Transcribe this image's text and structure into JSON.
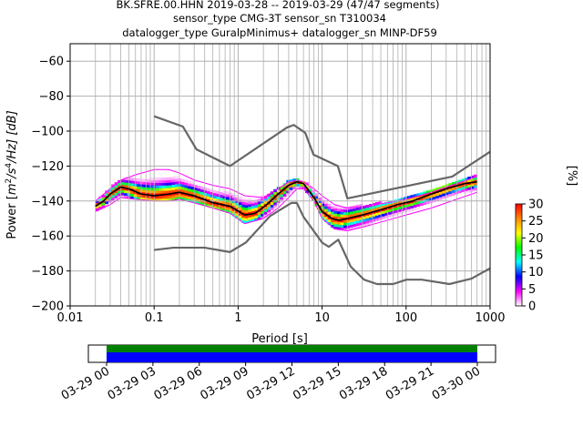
{
  "chart_data": {
    "type": "heatmap",
    "title_lines": [
      "BK.SFRE.00.HHN   2019-03-28 -- 2019-03-29  (47/47 segments)",
      "sensor_type CMG-3T sensor_sn T310034",
      "datalogger_type GuralpMinimus+ datalogger_sn MINP-DF59"
    ],
    "xlabel": "Period [s]",
    "ylabel": "Power [m²/s⁴/Hz] [dB]",
    "ylabel_parts": {
      "base": "Power [",
      "m": "m",
      "exp2": "2",
      "slash": "/s",
      "exp4": "4",
      "hz": "/Hz] [dB]"
    },
    "xscale": "log",
    "xlim": [
      0.01,
      1000
    ],
    "ylim": [
      -200,
      -50
    ],
    "xticks": [
      0.01,
      0.1,
      1,
      10,
      100,
      1000
    ],
    "xtick_labels": [
      "0.01",
      "0.1",
      "1",
      "10",
      "100",
      "1000"
    ],
    "yticks": [
      -60,
      -80,
      -100,
      -120,
      -140,
      -160,
      -180,
      -200
    ],
    "ytick_labels": [
      "−60",
      "−80",
      "−100",
      "−120",
      "−140",
      "−160",
      "−180",
      "−200"
    ],
    "grid": true,
    "colorbar": {
      "label": "[%]",
      "range": [
        0,
        30
      ],
      "ticks": [
        0,
        5,
        10,
        15,
        20,
        25,
        30
      ],
      "tick_labels": [
        "0",
        "5",
        "10",
        "15",
        "20",
        "25",
        "30"
      ],
      "colors": [
        "#ffffff",
        "#ff00ff",
        "#0000ff",
        "#00ffff",
        "#00ff00",
        "#ffff00",
        "#ff8800",
        "#ff0000"
      ]
    },
    "nhnm": {
      "period": [
        0.1,
        0.22,
        0.32,
        0.8,
        3.8,
        4.6,
        6.3,
        7.9,
        15.4,
        20,
        354.8,
        1000
      ],
      "db": [
        -91.5,
        -97.4,
        -110.5,
        -120,
        -98,
        -96.5,
        -101,
        -113.5,
        -120,
        -138.5,
        -126,
        -111.8
      ]
    },
    "nlnm": {
      "period": [
        0.1,
        0.17,
        0.4,
        0.8,
        1.24,
        2.4,
        4.3,
        5,
        6,
        10,
        12,
        15.6,
        21.9,
        31.6,
        45,
        70,
        101,
        154,
        328,
        600,
        1000
      ],
      "db": [
        -168,
        -166.7,
        -166.7,
        -169.2,
        -163.7,
        -148.6,
        -141.1,
        -141.1,
        -149,
        -163.8,
        -166.2,
        -162.1,
        -177.5,
        -185,
        -187.5,
        -187.5,
        -185,
        -185,
        -187.5,
        -184.4,
        -178.5
      ]
    },
    "mode_curve": {
      "period": [
        0.02,
        0.025,
        0.03,
        0.04,
        0.05,
        0.07,
        0.1,
        0.15,
        0.2,
        0.3,
        0.5,
        0.8,
        1.2,
        1.6,
        2.2,
        3,
        4,
        5,
        6,
        8,
        10,
        13,
        16,
        20,
        30,
        50,
        80,
        120,
        200,
        300,
        500,
        700
      ],
      "db": [
        -143,
        -140,
        -136,
        -132,
        -133,
        -136,
        -137,
        -136,
        -135,
        -137,
        -141,
        -143,
        -148,
        -147,
        -142,
        -136,
        -131,
        -129,
        -130,
        -138,
        -146,
        -150,
        -151,
        -150,
        -148,
        -145,
        -142,
        -140,
        -136,
        -133,
        -130,
        -129
      ]
    },
    "envelope_upper": {
      "period": [
        0.02,
        0.03,
        0.04,
        0.06,
        0.1,
        0.15,
        0.2,
        0.3,
        0.5,
        0.8,
        1.2,
        2,
        3,
        4,
        5,
        6,
        8,
        10,
        14,
        20,
        30,
        60,
        100,
        200,
        400,
        700
      ],
      "db": [
        -140,
        -133,
        -128,
        -125,
        -122,
        -122,
        -124,
        -128,
        -131,
        -133,
        -137,
        -138,
        -133,
        -129,
        -128,
        -129,
        -133,
        -137,
        -142,
        -144,
        -143,
        -141,
        -139,
        -135,
        -130,
        -126
      ]
    },
    "envelope_lower": {
      "period": [
        0.02,
        0.03,
        0.04,
        0.06,
        0.1,
        0.15,
        0.2,
        0.3,
        0.5,
        0.8,
        1.2,
        2,
        3,
        4,
        5,
        6,
        8,
        10,
        14,
        20,
        30,
        60,
        100,
        200,
        400,
        700
      ],
      "db": [
        -146,
        -142,
        -138,
        -139,
        -140,
        -140,
        -139,
        -141,
        -144,
        -147,
        -153,
        -150,
        -144,
        -138,
        -133,
        -133,
        -140,
        -150,
        -156,
        -157,
        -155,
        -151,
        -148,
        -144,
        -139,
        -135
      ]
    }
  },
  "timeline": {
    "tick_labels": [
      "03-29 00",
      "03-29 03",
      "03-29 06",
      "03-29 09",
      "03-29 12",
      "03-29 15",
      "03-29 18",
      "03-29 21",
      "03-30 00"
    ],
    "coverage_fraction": 1.0,
    "colors": {
      "good": "#008000",
      "data": "#0000ff"
    }
  }
}
